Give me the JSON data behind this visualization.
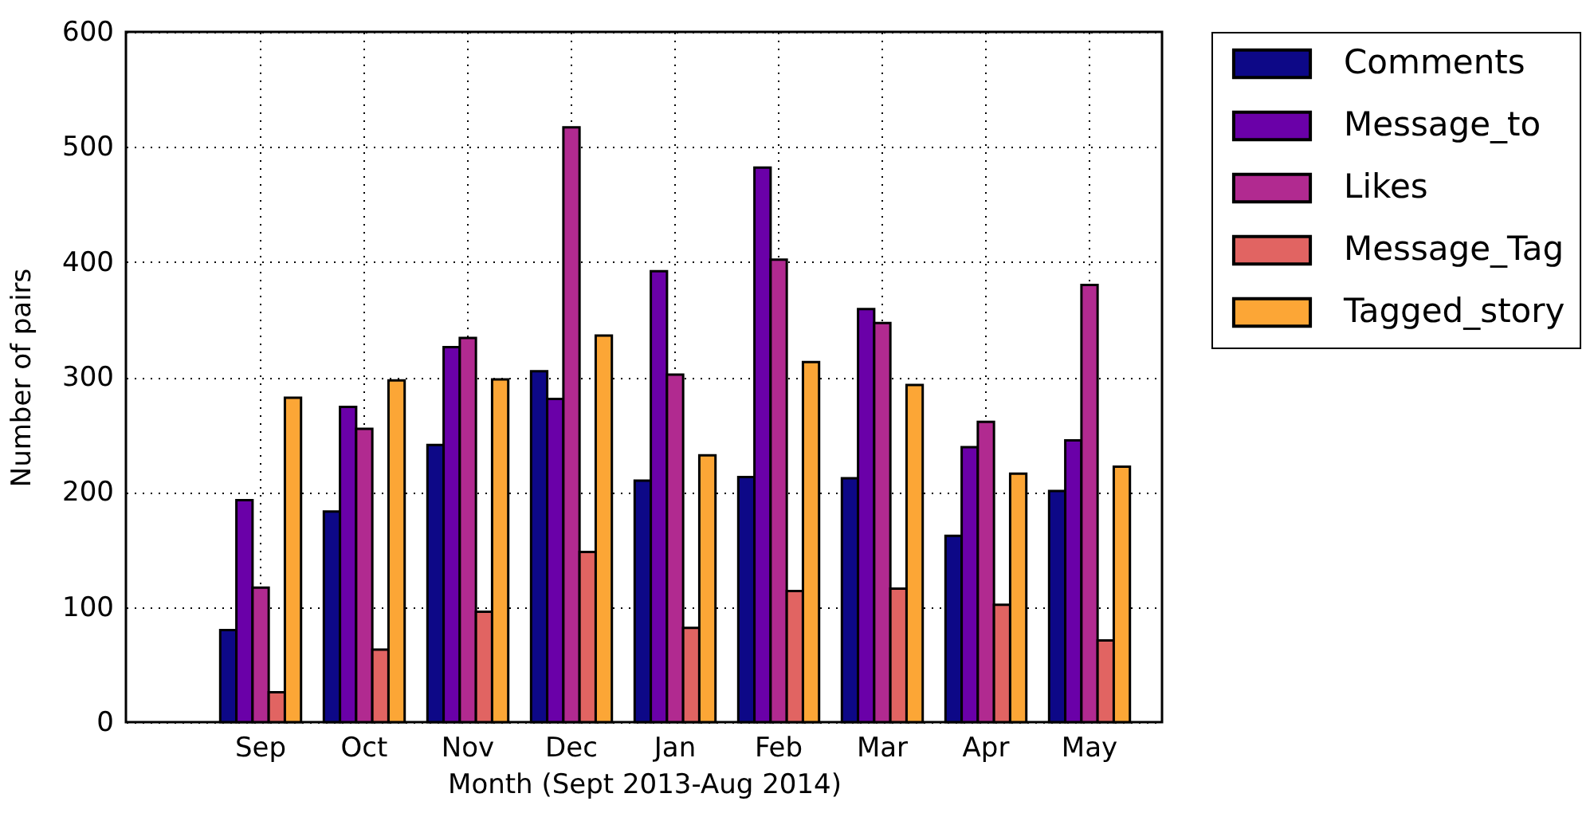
{
  "chart_data": {
    "type": "bar",
    "xlabel": "Month (Sept 2013-Aug 2014)",
    "ylabel": "Number of pairs",
    "categories": [
      "Sep",
      "Oct",
      "Nov",
      "Dec",
      "Jan",
      "Feb",
      "Mar",
      "Apr",
      "May"
    ],
    "series": [
      {
        "name": "Comments",
        "color": "#0d0887",
        "values": [
          80,
          183,
          241,
          305,
          210,
          213,
          212,
          162,
          201
        ]
      },
      {
        "name": "Message_to",
        "color": "#6a00a8",
        "values": [
          193,
          274,
          326,
          281,
          392,
          482,
          359,
          239,
          245
        ]
      },
      {
        "name": "Likes",
        "color": "#b12a90",
        "values": [
          117,
          255,
          334,
          517,
          302,
          402,
          347,
          261,
          380
        ]
      },
      {
        "name": "Message_Tag",
        "color": "#e16462",
        "values": [
          26,
          63,
          96,
          148,
          82,
          114,
          116,
          102,
          71
        ]
      },
      {
        "name": "Tagged_story",
        "color": "#fca636",
        "values": [
          282,
          297,
          298,
          336,
          232,
          313,
          293,
          216,
          222
        ]
      }
    ],
    "ylim": [
      0,
      600
    ],
    "yticks": [
      0,
      100,
      200,
      300,
      400,
      500,
      600
    ],
    "grid": true,
    "legend": "top right"
  }
}
